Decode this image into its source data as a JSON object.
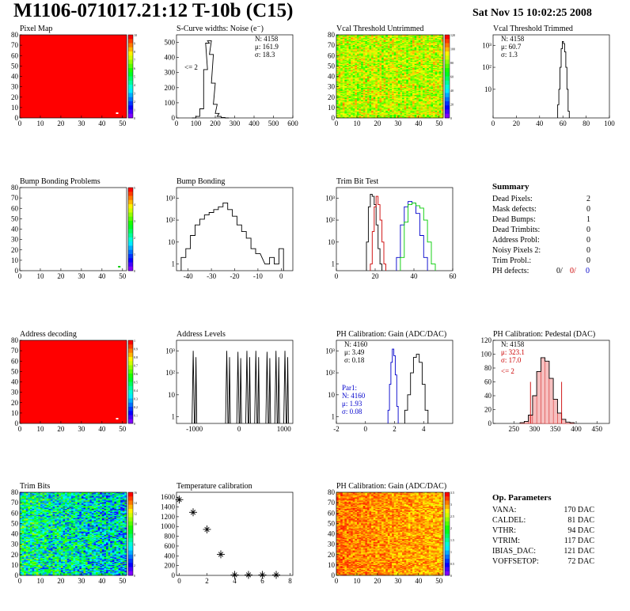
{
  "page": {
    "title": "M1106-071017.21:12 T-10b (C15)",
    "date": "Sat Nov 15 10:02:25 2008"
  },
  "panels": [
    {
      "id": "pixel-map",
      "title": "Pixel Map",
      "kind": "map",
      "xticks": [
        "0",
        "10",
        "20",
        "30",
        "40",
        "50"
      ],
      "yticks": [
        "0",
        "10",
        "20",
        "30",
        "40",
        "50",
        "60",
        "70",
        "80"
      ],
      "palette": [
        "0",
        "1",
        "2",
        "3",
        "4",
        "5",
        "6",
        "7",
        "8",
        "9",
        "10"
      ],
      "fill": "uniform-red",
      "mark": "white-dot"
    },
    {
      "id": "s-curve",
      "title": "S-Curve widths: Noise (e⁻)",
      "kind": "hist",
      "xticks": [
        "0",
        "100",
        "200",
        "300",
        "400",
        "500",
        "600"
      ],
      "yticks": [
        "0",
        "100",
        "200",
        "300",
        "400",
        "500"
      ],
      "stats": [
        "N: 4158",
        "μ: 161.9",
        "σ: 18.3"
      ],
      "note": "<= 2"
    },
    {
      "id": "vcal-untrimmed",
      "title": "Vcal Threshold Untrimmed",
      "kind": "map",
      "xticks": [
        "0",
        "10",
        "20",
        "30",
        "40",
        "50"
      ],
      "yticks": [
        "0",
        "10",
        "20",
        "30",
        "40",
        "50",
        "60",
        "70",
        "80"
      ],
      "palette": [
        "0",
        "20",
        "40",
        "60",
        "80",
        "100",
        "120"
      ],
      "fill": "orange-noise"
    },
    {
      "id": "vcal-trimmed",
      "title": "Vcal Threshold Trimmed",
      "kind": "hist",
      "xticks": [
        "0",
        "20",
        "40",
        "60",
        "80",
        "100"
      ],
      "yticks": [
        "10",
        "10²",
        "10³"
      ],
      "log": true,
      "stats": [
        "N: 4158",
        "μ: 60.7",
        "σ:  1.3"
      ]
    },
    {
      "id": "bump-problems",
      "title": "Bump Bonding Problems",
      "kind": "map",
      "xticks": [
        "0",
        "10",
        "20",
        "30",
        "40",
        "50"
      ],
      "yticks": [
        "0",
        "10",
        "20",
        "30",
        "40",
        "50",
        "60",
        "70",
        "80"
      ],
      "palette": [
        "0",
        "1",
        "2",
        "3",
        "4",
        "5"
      ],
      "fill": "empty",
      "mark": "green-dot"
    },
    {
      "id": "bump-bonding",
      "title": "Bump Bonding",
      "kind": "hist",
      "xticks": [
        "-40",
        "-30",
        "-20",
        "-10",
        "0"
      ],
      "yticks": [
        "1",
        "10",
        "10²",
        "10³"
      ],
      "log": true
    },
    {
      "id": "trim-bit-test",
      "title": "Trim Bit Test",
      "kind": "hist",
      "xticks": [
        "0",
        "20",
        "40",
        "60"
      ],
      "yticks": [
        "1",
        "10",
        "10²",
        "10³"
      ],
      "log": true
    },
    {
      "id": "address-decoding",
      "title": "Address decoding",
      "kind": "map",
      "xticks": [
        "0",
        "10",
        "20",
        "30",
        "40",
        "50"
      ],
      "yticks": [
        "0",
        "10",
        "20",
        "30",
        "40",
        "50",
        "60",
        "70",
        "80"
      ],
      "palette": [
        "0",
        "0.1",
        "0.2",
        "0.3",
        "0.4",
        "0.5",
        "0.6",
        "0.7",
        "0.8",
        "0.9",
        "1"
      ],
      "fill": "uniform-red",
      "mark": "white-dot"
    },
    {
      "id": "address-levels",
      "title": "Address Levels",
      "kind": "hist",
      "xticks": [
        "-1000",
        "0",
        "1000"
      ],
      "yticks": [
        "1",
        "10",
        "10²",
        "10³"
      ],
      "log": true
    },
    {
      "id": "ph-gain",
      "title": "PH Calibration: Gain (ADC/DAC)",
      "kind": "hist",
      "xticks": [
        "-2",
        "0",
        "2",
        "4"
      ],
      "yticks": [
        "1",
        "10",
        "10²",
        "10³"
      ],
      "log": true,
      "stats": [
        "N: 4160",
        "μ: 3.49",
        "σ: 0.18"
      ],
      "par1": [
        "Par1:",
        "N: 4160",
        "μ: 1.93",
        "σ: 0.08"
      ]
    },
    {
      "id": "ph-pedestal",
      "title": "PH Calibration: Pedestal (DAC)",
      "kind": "hist",
      "xticks": [
        "250",
        "300",
        "350",
        "400",
        "450"
      ],
      "yticks": [
        "0",
        "20",
        "40",
        "60",
        "80",
        "100",
        "120"
      ],
      "stats": [
        "N: 4158",
        "μ: 323.1",
        "σ: 17.0"
      ],
      "note": "<= 2"
    },
    {
      "id": "trim-bits",
      "title": "Trim Bits",
      "kind": "map",
      "xticks": [
        "0",
        "10",
        "20",
        "30",
        "40",
        "50"
      ],
      "yticks": [
        "0",
        "10",
        "20",
        "30",
        "40",
        "50",
        "60",
        "70",
        "80"
      ],
      "palette": [
        "0",
        "2",
        "4",
        "6",
        "8",
        "10",
        "12",
        "14",
        "16"
      ],
      "fill": "trim-noise"
    },
    {
      "id": "temperature",
      "title": "Temperature calibration",
      "kind": "scatter",
      "xticks": [
        "0",
        "2",
        "4",
        "6",
        "8"
      ],
      "yticks": [
        "0",
        "200",
        "400",
        "600",
        "800",
        "1000",
        "1200",
        "1400",
        "1600"
      ]
    },
    {
      "id": "ph-gain-map",
      "title": "PH Calibration: Gain (ADC/DAC)",
      "kind": "map",
      "xticks": [
        "0",
        "10",
        "20",
        "30",
        "40",
        "50"
      ],
      "yticks": [
        "0",
        "10",
        "20",
        "30",
        "40",
        "50",
        "60",
        "70",
        "80"
      ],
      "palette": [
        "0",
        "0.5",
        "1",
        "1.5",
        "2",
        "2.5",
        "3",
        "3.5"
      ],
      "fill": "gain-noise"
    }
  ],
  "summary": {
    "title": "Summary",
    "rows": [
      {
        "label": "Dead Pixels:",
        "value": "2"
      },
      {
        "label": "Mask defects:",
        "value": "0"
      },
      {
        "label": "Dead Bumps:",
        "value": "1"
      },
      {
        "label": "Dead Trimbits:",
        "value": "0"
      },
      {
        "label": "Address Probl:",
        "value": "0"
      },
      {
        "label": "Noisy Pixels 2:",
        "value": "0"
      },
      {
        "label": "Trim Probl.:",
        "value": "0"
      }
    ],
    "ph_label": "PH defects:",
    "ph_values": [
      "0/",
      "0/",
      "0"
    ],
    "ph_colors": [
      "#000000",
      "#cc0000",
      "#0000cc"
    ]
  },
  "parameters": {
    "title": "Op. Parameters",
    "rows": [
      {
        "label": "VANA:",
        "value": "170 DAC"
      },
      {
        "label": "CALDEL:",
        "value": "81 DAC"
      },
      {
        "label": "VTHR:",
        "value": "94 DAC"
      },
      {
        "label": "VTRIM:",
        "value": "117 DAC"
      },
      {
        "label": "IBIAS_DAC:",
        "value": "121 DAC"
      },
      {
        "label": "VOFFSETOP:",
        "value": "72 DAC"
      }
    ]
  },
  "chart_data": [
    {
      "type": "heatmap",
      "title": "Pixel Map",
      "xlim": [
        0,
        52
      ],
      "ylim": [
        0,
        80
      ],
      "zlim": [
        0,
        10
      ],
      "note": "all pixels at maximum value (red) except a white dot near x=50, y=5"
    },
    {
      "type": "bar",
      "title": "S-Curve widths: Noise (e⁻)",
      "xlim": [
        0,
        600
      ],
      "ylim": [
        0,
        550
      ],
      "x": [
        90,
        110,
        130,
        150,
        160,
        170,
        180,
        190,
        200,
        210,
        220,
        240,
        260
      ],
      "values": [
        0,
        10,
        60,
        320,
        495,
        510,
        420,
        230,
        90,
        30,
        10,
        3,
        0
      ]
    },
    {
      "type": "heatmap",
      "title": "Vcal Threshold Untrimmed",
      "xlim": [
        0,
        52
      ],
      "ylim": [
        0,
        80
      ],
      "zlim": [
        0,
        130
      ]
    },
    {
      "type": "bar",
      "title": "Vcal Threshold Trimmed",
      "log": true,
      "xlim": [
        0,
        100
      ],
      "x": [
        56,
        57,
        58,
        59,
        60,
        61,
        62,
        63,
        64,
        65
      ],
      "values": [
        2,
        10,
        100,
        700,
        1500,
        1200,
        500,
        100,
        10,
        1
      ]
    },
    {
      "type": "heatmap",
      "title": "Bump Bonding Problems",
      "xlim": [
        0,
        52
      ],
      "ylim": [
        0,
        80
      ],
      "zlim": [
        0,
        5
      ],
      "note": "empty except one green pixel near x=47, y=3"
    },
    {
      "type": "bar",
      "title": "Bump Bonding",
      "log": true,
      "xlim": [
        -45,
        5
      ],
      "x": [
        -42,
        -40,
        -38,
        -36,
        -34,
        -32,
        -30,
        -28,
        -26,
        -24,
        -22,
        -20,
        -18,
        -16,
        -14,
        -12,
        -10,
        -6,
        -4,
        -2,
        0
      ],
      "values": [
        2,
        5,
        20,
        60,
        110,
        170,
        220,
        300,
        400,
        600,
        300,
        150,
        60,
        30,
        15,
        5,
        3,
        1,
        2,
        1,
        5
      ]
    },
    {
      "type": "line",
      "title": "Trim Bit Test",
      "log": true,
      "xlim": [
        0,
        60
      ],
      "series": [
        {
          "name": "",
          "color": "#000000",
          "x": [
            16,
            17,
            18,
            19,
            20,
            21,
            22,
            23
          ],
          "values": [
            10,
            400,
            1500,
            1200,
            500,
            60,
            5,
            1
          ]
        },
        {
          "name": "",
          "color": "#cc0000",
          "x": [
            18,
            19,
            20,
            21,
            22,
            23,
            24,
            25
          ],
          "values": [
            1,
            30,
            400,
            1200,
            500,
            100,
            10,
            1
          ]
        },
        {
          "name": "",
          "color": "#0000cc",
          "x": [
            32,
            34,
            36,
            38,
            40,
            42,
            44,
            46
          ],
          "values": [
            2,
            60,
            400,
            700,
            600,
            200,
            20,
            2
          ]
        },
        {
          "name": "",
          "color": "#00cc00",
          "x": [
            34,
            36,
            38,
            40,
            42,
            44,
            46,
            48,
            50
          ],
          "values": [
            2,
            80,
            500,
            600,
            450,
            350,
            100,
            10,
            1
          ]
        }
      ]
    },
    {
      "type": "heatmap",
      "title": "Address decoding",
      "xlim": [
        0,
        52
      ],
      "ylim": [
        0,
        80
      ],
      "zlim": [
        0,
        1
      ],
      "note": "all pixels at maximum value (red) except a white dot near x=50, y=5"
    },
    {
      "type": "bar",
      "title": "Address Levels",
      "log": true,
      "xlim": [
        -1400,
        1200
      ],
      "x": [
        -1000,
        -250,
        0,
        200,
        400,
        650,
        850,
        1050
      ],
      "values": [
        1000,
        1000,
        900,
        1000,
        1000,
        900,
        1000,
        1000
      ]
    },
    {
      "type": "line",
      "title": "PH Calibration: Gain (ADC/DAC)",
      "log": true,
      "xlim": [
        -2,
        6
      ],
      "series": [
        {
          "name": "",
          "color": "#000000",
          "x": [
            2.8,
            3.0,
            3.2,
            3.4,
            3.6,
            3.8,
            4.0,
            4.2
          ],
          "values": [
            2,
            10,
            100,
            500,
            700,
            300,
            30,
            2
          ]
        },
        {
          "name": "",
          "color": "#0000cc",
          "x": [
            1.6,
            1.7,
            1.8,
            1.9,
            2.0,
            2.1,
            2.2
          ],
          "values": [
            2,
            30,
            300,
            1200,
            600,
            80,
            3
          ]
        }
      ]
    },
    {
      "type": "bar",
      "title": "PH Calibration: Pedestal (DAC)",
      "xlim": [
        200,
        480
      ],
      "ylim": [
        0,
        120
      ],
      "x": [
        270,
        280,
        290,
        300,
        310,
        320,
        330,
        340,
        350,
        360,
        370,
        380,
        390
      ],
      "values": [
        1,
        3,
        12,
        40,
        75,
        95,
        90,
        65,
        35,
        15,
        6,
        2,
        1
      ]
    },
    {
      "type": "heatmap",
      "title": "Trim Bits",
      "xlim": [
        0,
        52
      ],
      "ylim": [
        0,
        80
      ],
      "zlim": [
        0,
        16
      ]
    },
    {
      "type": "scatter",
      "title": "Temperature calibration",
      "xlim": [
        -0.2,
        8.2
      ],
      "ylim": [
        0,
        1700
      ],
      "x": [
        0,
        1,
        2,
        3,
        4,
        5,
        6,
        7
      ],
      "values": [
        1550,
        1290,
        940,
        430,
        10,
        10,
        10,
        10
      ]
    },
    {
      "type": "heatmap",
      "title": "PH Calibration: Gain (ADC/DAC)",
      "xlim": [
        0,
        52
      ],
      "ylim": [
        0,
        80
      ],
      "zlim": [
        0,
        3.8
      ]
    }
  ]
}
